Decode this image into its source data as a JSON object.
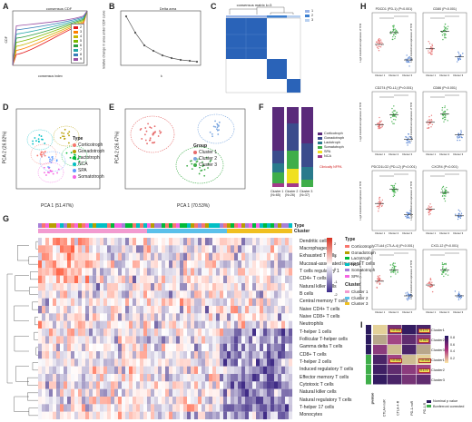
{
  "panels": {
    "A": "A",
    "B": "B",
    "C": "C",
    "D": "D",
    "E": "E",
    "F": "F",
    "G": "G",
    "H": "H",
    "I": "I"
  },
  "A": {
    "title": "consensus CDF",
    "xlabel": "consensus index",
    "ylabel": "CDF",
    "legend": [
      "2",
      "3",
      "4",
      "5",
      "6",
      "7",
      "8",
      "9"
    ],
    "colors": [
      "#e41a1c",
      "#ff7f00",
      "#c9b700",
      "#7ab800",
      "#2c9e3f",
      "#21a6a6",
      "#377eb8",
      "#984ea3"
    ]
  },
  "B": {
    "title": "Delta area",
    "xlabel": "k",
    "ylabel": "relative change in area under CDF curve"
  },
  "C": {
    "title": "consensus matrix k=3",
    "legend": [
      "1",
      "2",
      "3"
    ]
  },
  "D": {
    "xlabel": "PCA 1 (51.47%)",
    "ylabel": "PCA 2 (26.82%)",
    "legend_title": "Type",
    "types": [
      "Corticotroph",
      "Gonadotroph",
      "Lactotroph",
      "NCA",
      "SPA",
      "Somatotroph"
    ],
    "colors": [
      "#f8766d",
      "#b79f00",
      "#00ba38",
      "#00bfc4",
      "#619cff",
      "#f564e3"
    ]
  },
  "E": {
    "xlabel": "PCA 1 (70.53%)",
    "ylabel": "PCA 2 (26.47%)",
    "legend_title": "Group",
    "groups": [
      "Cluster 1",
      "Cluster 2",
      "Cluster 3"
    ],
    "colors": [
      "#e66b6b",
      "#7aa6e0",
      "#3fae4a"
    ]
  },
  "F": {
    "xlabels": [
      "Cluster 1\n(N=65)",
      "Cluster 2\n(N=26)",
      "Cluster 3\n(N=37)"
    ],
    "legend": [
      "Corticotroph",
      "Gonadotroph",
      "Lactotroph",
      "Somatotroph",
      "SPA",
      "NCA"
    ],
    "colors": [
      "#5a2a7a",
      "#3b4c8c",
      "#2a7a8c",
      "#3fae4a",
      "#f0e020",
      "#a33a8a"
    ],
    "annotation": "Clinically NFPA"
  },
  "G": {
    "legend_type_title": "Type",
    "legend_cluster_title": "Cluster",
    "types": [
      "Corticotroph",
      "Gonadotroph",
      "Lactotroph",
      "NCA",
      "Somatotroph",
      "SPA"
    ],
    "type_colors": [
      "#f8766d",
      "#b79f00",
      "#00ba38",
      "#00bfc4",
      "#a67fd8",
      "#f564e3"
    ],
    "clusters": [
      "Cluster 1",
      "Cluster 2",
      "Cluster 3"
    ],
    "cluster_colors": [
      "#f29bd0",
      "#5bc0ea",
      "#f0c020"
    ],
    "cells": [
      "Dendritic cells",
      "Macrophages",
      "Exhausted T cells",
      "Mucosal-associated invariant T cells",
      "T cells regulatory 1",
      "CD4+ T cells",
      "Natural killer cells",
      "B cells",
      "Central memory T cells",
      "Naive CD4+ T cells",
      "Naive CD8+ T cells",
      "Neutrophils",
      "T-helper 1 cells",
      "Follicular T-helper cells",
      "Gamma delta T cells",
      "CD8+ T cells",
      "T-helper 2 cells",
      "Induced regulatory T cells",
      "Effector memory T cells",
      "Cytotoxic T cells",
      "Natural killer cells",
      "Natural regulatory T cells",
      "T-helper 17 cells",
      "Monocytes"
    ],
    "scale": [
      "2",
      "1",
      "0",
      "-1",
      "-2"
    ],
    "type_label": "Type",
    "cluster_label": "Cluster"
  },
  "H": {
    "titles": [
      "PDCD1 (PD-1) (P<0.001)",
      "CD80 (P<0.001)",
      "CD274 (PD-L1) (P<0.001)",
      "CD86 (P<0.001)",
      "PDCD1LG2 (PD-L2) (P<0.001)",
      "CXCR4 (P<0.001)",
      "CTLA4 (CTLA-4) (P<0.001)",
      "CXCL12 (P<0.001)"
    ],
    "ylabel": "Log2 transformed expression of TPM",
    "xlabels": [
      "Cluster 1",
      "Cluster 2",
      "Cluster 3"
    ]
  },
  "I": {
    "rows": [
      "Cluster1",
      "Cluster2",
      "Cluster3",
      "Cluster1",
      "Cluster2",
      "Cluster3"
    ],
    "cols": [
      "CTLA4-noR",
      "CTLA-4-R",
      "PD-1-noR",
      "PD-1-R"
    ],
    "pvals": [
      "<0.001",
      "0.171",
      "0.011",
      "<0.001",
      "<0.001",
      "0.171"
    ],
    "scale": [
      "0.8",
      "0.6",
      "0.4",
      "0.2"
    ],
    "pvalue_label": "pvalue",
    "legend": [
      "Nominal p value",
      "Bonferroni corrected"
    ],
    "legend_colors": [
      "#2a1a5e",
      "#3fae4a"
    ]
  }
}
